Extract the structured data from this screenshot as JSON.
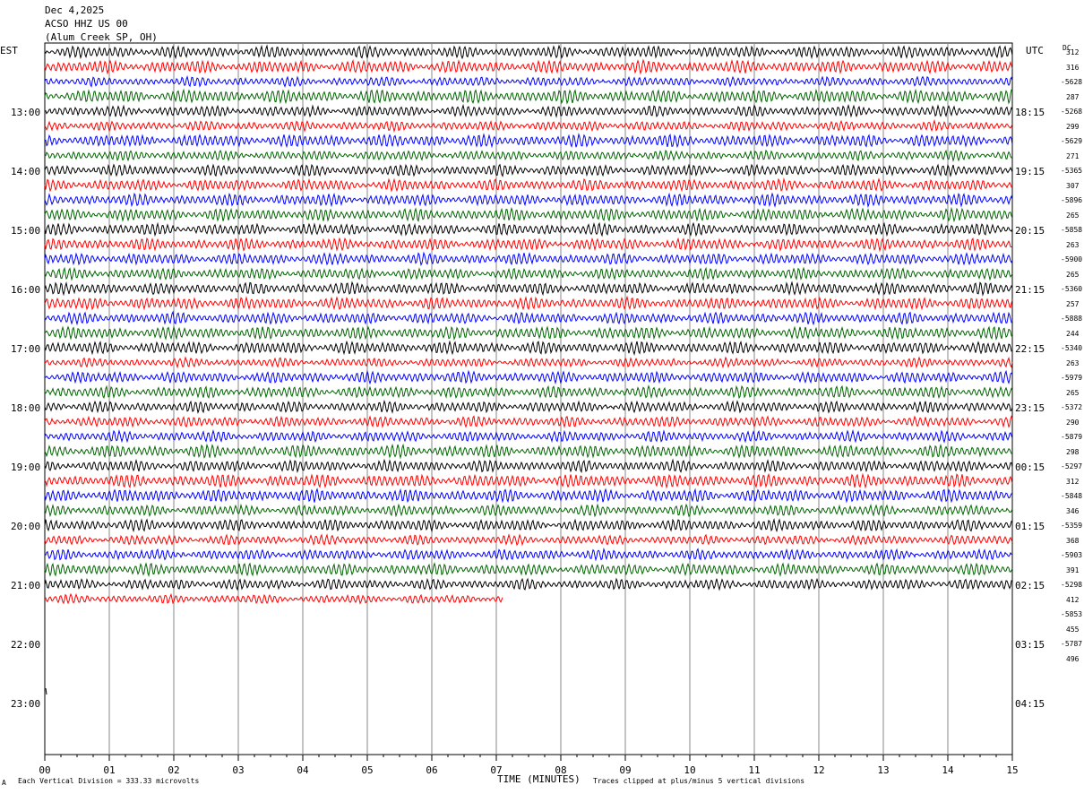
{
  "header": {
    "date": "Dec 4,2025",
    "station": "ACSO HHZ US 00",
    "location": "(Alum Creek SP, OH)"
  },
  "left_tz": "EST",
  "right_tz": "UTC",
  "dc_label": "DC",
  "footer": {
    "scale": "Each Vertical Division =  333.33 microvolts",
    "clip": "Traces clipped at plus/minus 5 vertical divisions",
    "marker": "A"
  },
  "chart_data": {
    "type": "line",
    "title": "Dec 4,2025 ACSO HHZ US 00 (Alum Creek SP, OH)",
    "xlabel": "TIME (MINUTES)",
    "xlim": [
      0,
      15
    ],
    "x_ticks": [
      "00",
      "01",
      "02",
      "03",
      "04",
      "05",
      "06",
      "07",
      "08",
      "09",
      "10",
      "11",
      "12",
      "13",
      "14",
      "15"
    ],
    "grid": true,
    "trace_colors": [
      "#000000",
      "#ff0000",
      "#0000ff",
      "#006400"
    ],
    "traces_per_hour": 4,
    "minutes_per_trace": 15,
    "last_trace_end_minute": 7.1,
    "left_hour_labels": [
      "13:00",
      "14:00",
      "15:00",
      "16:00",
      "17:00",
      "18:00",
      "19:00",
      "20:00",
      "21:00",
      "22:00",
      "23:00"
    ],
    "right_hour_labels": [
      "18:15",
      "19:15",
      "20:15",
      "21:15",
      "22:15",
      "23:15",
      "00:15",
      "01:15",
      "02:15",
      "03:15",
      "04:15"
    ],
    "dc_offsets": [
      [
        "312",
        "316",
        "-5628",
        "287"
      ],
      [
        "-5268",
        "299",
        "-5629",
        "271"
      ],
      [
        "-5365",
        "307",
        "-5896",
        "265"
      ],
      [
        "-5858",
        "263",
        "-5900",
        "265"
      ],
      [
        "-5360",
        "257",
        "-5888",
        "244"
      ],
      [
        "-5340",
        "263",
        "-5979",
        "265"
      ],
      [
        "-5372",
        "290",
        "-5879",
        "298"
      ],
      [
        "-5297",
        "312",
        "-5848",
        "346"
      ],
      [
        "-5359",
        "368",
        "-5903",
        "391"
      ],
      [
        "-5298",
        "412",
        "-5853",
        "455"
      ],
      [
        "-5787",
        "496"
      ]
    ]
  }
}
